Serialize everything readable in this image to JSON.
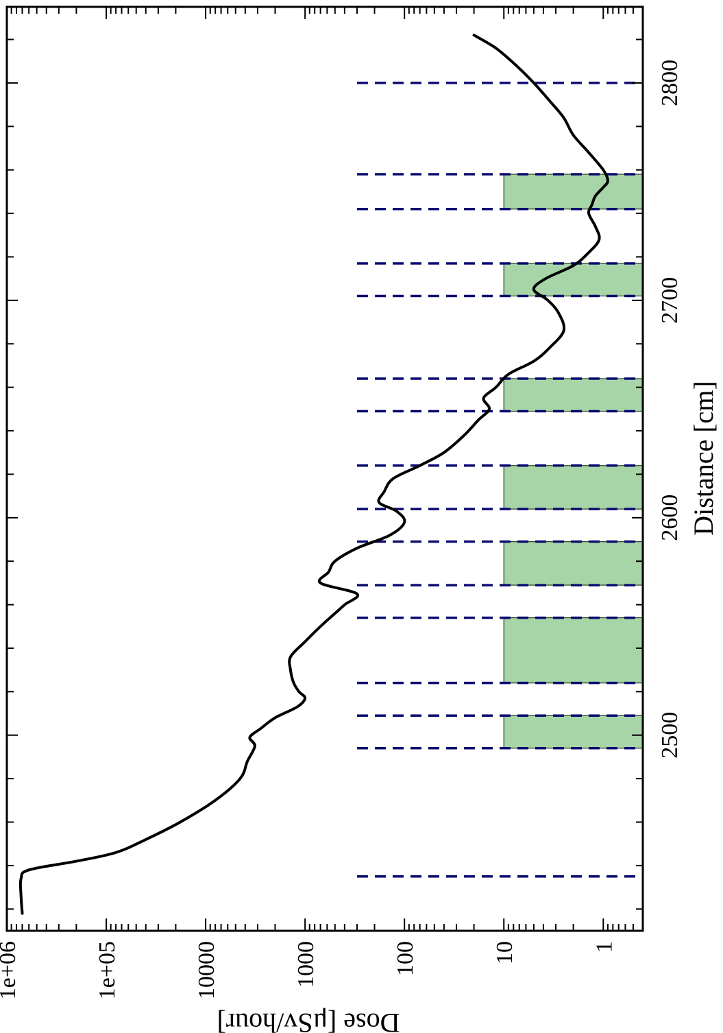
{
  "chart_data": {
    "type": "line",
    "orientation": "rotated-90",
    "xlabel": "Distance [cm]",
    "ylabel": "Dose [μSv/hour]",
    "xlim": [
      2410,
      2835
    ],
    "ylim": [
      0.4,
      1000000
    ],
    "y_scale": "log",
    "x_ticks": [
      2500,
      2600,
      2700,
      2800
    ],
    "x_tick_labels": [
      "2500",
      "2600",
      "2700",
      "2800"
    ],
    "y_ticks": [
      1000000,
      100000,
      10000,
      1000,
      100,
      10,
      1
    ],
    "y_tick_labels": [
      "1e+06",
      "1e+05",
      "10000",
      "1000",
      "100",
      "10",
      "1"
    ],
    "grid": false,
    "colors": {
      "line": "#000000",
      "dashed_lines": "#0a0a70",
      "shaded_regions": "#a8d5a8"
    },
    "series": [
      {
        "x": [
          2418,
          2426,
          2434,
          2438,
          2442,
          2446,
          2452,
          2460,
          2470,
          2480,
          2488,
          2495,
          2499,
          2503,
          2508,
          2513,
          2517,
          2520,
          2524,
          2530,
          2536,
          2543,
          2550,
          2556,
          2560,
          2565,
          2570,
          2575,
          2580,
          2586,
          2592,
          2598,
          2603,
          2607,
          2612,
          2618,
          2624,
          2630,
          2638,
          2645,
          2650,
          2655,
          2660,
          2666,
          2672,
          2678,
          2686,
          2694,
          2700,
          2705,
          2710,
          2716,
          2722,
          2728,
          2734,
          2740,
          2744,
          2748,
          2752,
          2755,
          2760,
          2768,
          2776,
          2784,
          2792,
          2800,
          2808,
          2816,
          2822
        ],
        "y": [
          700000,
          720000,
          720000,
          600000,
          200000,
          80000,
          40000,
          18000,
          8000,
          4500,
          3800,
          3200,
          3600,
          2800,
          2000,
          1200,
          1000,
          1150,
          1300,
          1400,
          1400,
          1000,
          700,
          500,
          400,
          300,
          700,
          580,
          500,
          300,
          140,
          100,
          120,
          180,
          160,
          130,
          70,
          40,
          25,
          18,
          14,
          16,
          12,
          9,
          5,
          3.5,
          2.5,
          2.8,
          3.6,
          5.0,
          3.8,
          2.0,
          1.4,
          1.1,
          1.2,
          1.4,
          1.3,
          1.2,
          1.0,
          0.9,
          1.0,
          1.4,
          2.0,
          2.5,
          3.5,
          5.0,
          7.5,
          12,
          20
        ]
      }
    ],
    "dashed_lines_x": [
      2435,
      2494,
      2509,
      2524,
      2554,
      2569,
      2589,
      2604,
      2624,
      2649,
      2664,
      2702,
      2717,
      2742,
      2758,
      2800
    ],
    "shaded_regions": [
      {
        "x_start": 2494,
        "x_end": 2509
      },
      {
        "x_start": 2524,
        "x_end": 2554
      },
      {
        "x_start": 2569,
        "x_end": 2589
      },
      {
        "x_start": 2604,
        "x_end": 2624
      },
      {
        "x_start": 2649,
        "x_end": 2664
      },
      {
        "x_start": 2702,
        "x_end": 2717
      },
      {
        "x_start": 2742,
        "x_end": 2758
      }
    ],
    "shaded_y_range": [
      0.4,
      10
    ],
    "dashed_y_range": [
      0.4,
      300
    ]
  }
}
